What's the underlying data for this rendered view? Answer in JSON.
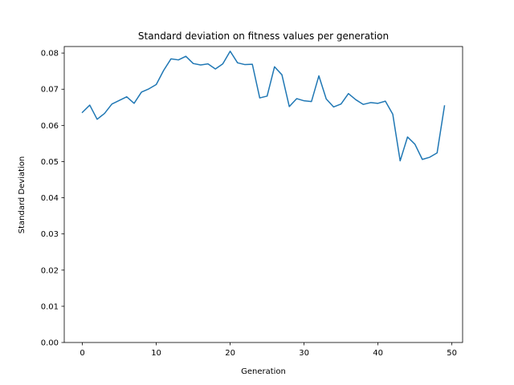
{
  "chart_data": {
    "type": "line",
    "title": "Standard deviation on fitness values per generation",
    "xlabel": "Generation",
    "ylabel": "Standard Deviation",
    "xlim": [
      -2.45,
      51.45
    ],
    "ylim": [
      0.0,
      0.0818
    ],
    "xticks": [
      0,
      10,
      20,
      30,
      40,
      50
    ],
    "yticks": [
      0.0,
      0.01,
      0.02,
      0.03,
      0.04,
      0.05,
      0.06,
      0.07,
      0.08
    ],
    "grid": false,
    "series": [
      {
        "color": "#1f77b4",
        "x": [
          0,
          1,
          2,
          3,
          4,
          5,
          6,
          7,
          8,
          9,
          10,
          11,
          12,
          13,
          14,
          15,
          16,
          17,
          18,
          19,
          20,
          21,
          22,
          23,
          24,
          25,
          26,
          27,
          28,
          29,
          30,
          31,
          32,
          33,
          34,
          35,
          36,
          37,
          38,
          39,
          40,
          41,
          42,
          43,
          44,
          45,
          46,
          47,
          48,
          49
        ],
        "values": [
          0.0636,
          0.0656,
          0.0617,
          0.0633,
          0.0659,
          0.0669,
          0.0679,
          0.0661,
          0.0692,
          0.0701,
          0.0713,
          0.0752,
          0.0784,
          0.0781,
          0.0791,
          0.0771,
          0.0767,
          0.077,
          0.0756,
          0.077,
          0.0805,
          0.0773,
          0.0768,
          0.0769,
          0.0676,
          0.0681,
          0.0762,
          0.074,
          0.0652,
          0.0674,
          0.0668,
          0.0666,
          0.0737,
          0.0673,
          0.0651,
          0.0659,
          0.0688,
          0.0671,
          0.0658,
          0.0663,
          0.0661,
          0.0667,
          0.0631,
          0.0502,
          0.0568,
          0.0548,
          0.0506,
          0.0512,
          0.0524,
          0.0654
        ]
      }
    ]
  }
}
